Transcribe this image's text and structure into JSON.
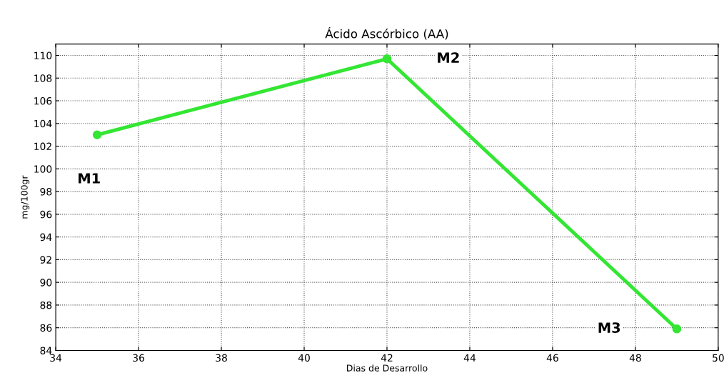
{
  "chart_data": {
    "type": "line",
    "title": "Ácido Ascórbico (AA)",
    "xlabel": "Dias de Desarrollo",
    "ylabel": "mg/100gr",
    "x": [
      35,
      42,
      49
    ],
    "series": [
      {
        "color": "#33e633",
        "values": [
          103,
          109.7,
          85.9
        ]
      }
    ],
    "xlim": [
      34,
      50
    ],
    "xticks": [
      34,
      36,
      38,
      40,
      42,
      44,
      46,
      48,
      50
    ],
    "ylim": [
      84,
      111
    ],
    "yticks": [
      84,
      86,
      88,
      90,
      92,
      94,
      96,
      98,
      100,
      102,
      104,
      106,
      108,
      110
    ],
    "grid": true,
    "marker": "circle",
    "line_style": "solid",
    "legend": false,
    "annotations": [
      "M1",
      "M2",
      "M3"
    ]
  }
}
